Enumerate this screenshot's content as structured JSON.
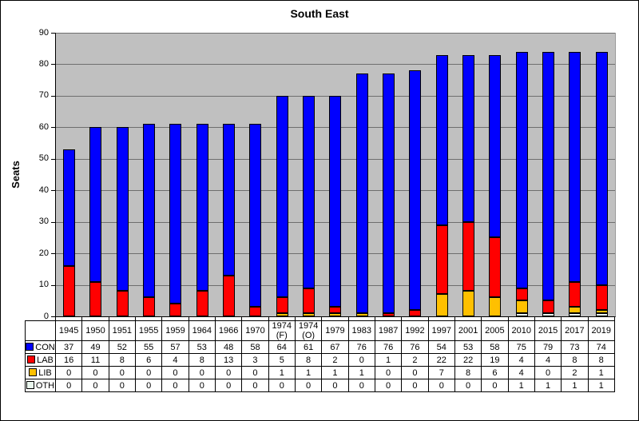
{
  "chart_data": {
    "type": "bar",
    "stacked": true,
    "title": "South East",
    "ylabel": "Seats",
    "ylim": [
      0,
      90
    ],
    "ytick_interval": 10,
    "grid": true,
    "legend_position": "table-left",
    "plot_bg_color": "#C0C0C0",
    "gridline_color": "#6e6e6e",
    "categories": [
      "1945",
      "1950",
      "1951",
      "1955",
      "1959",
      "1964",
      "1966",
      "1970",
      "1974 (F)",
      "1974 (O)",
      "1979",
      "1983",
      "1987",
      "1992",
      "1997",
      "2001",
      "2005",
      "2010",
      "2015",
      "2017",
      "2019"
    ],
    "series": [
      {
        "name": "CON",
        "color": "#0000FF",
        "values": [
          37,
          49,
          52,
          55,
          57,
          53,
          48,
          58,
          64,
          61,
          67,
          76,
          76,
          76,
          54,
          53,
          58,
          75,
          79,
          73,
          74
        ]
      },
      {
        "name": "LAB",
        "color": "#FF0000",
        "values": [
          16,
          11,
          8,
          6,
          4,
          8,
          13,
          3,
          5,
          8,
          2,
          0,
          1,
          2,
          22,
          22,
          19,
          4,
          4,
          8,
          8
        ]
      },
      {
        "name": "LIB",
        "color": "#FFC000",
        "values": [
          0,
          0,
          0,
          0,
          0,
          0,
          0,
          0,
          1,
          1,
          1,
          1,
          0,
          0,
          7,
          8,
          6,
          4,
          0,
          2,
          1
        ]
      },
      {
        "name": "OTH",
        "color": "#EAF7EE",
        "values": [
          0,
          0,
          0,
          0,
          0,
          0,
          0,
          0,
          0,
          0,
          0,
          0,
          0,
          0,
          0,
          0,
          0,
          1,
          1,
          1,
          1
        ]
      }
    ]
  }
}
